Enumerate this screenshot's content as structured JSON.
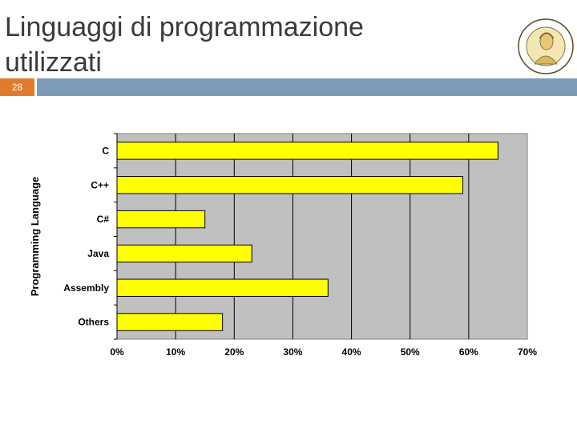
{
  "slide": {
    "title": "Linguaggi di programmazione utilizzati",
    "number": "28"
  },
  "logo": {
    "text": "UNIVERSITAS NEAPOLITANA"
  },
  "colors": {
    "bar_fill": "#ffff00",
    "bar_stroke": "#000000",
    "plot_bg": "#c0c0c0",
    "header_bar": "#7f9ab8",
    "slide_number_bg": "#e07b2e"
  },
  "chart_data": {
    "type": "bar",
    "orientation": "horizontal",
    "categories": [
      "C",
      "C++",
      "C#",
      "Java",
      "Assembly",
      "Others"
    ],
    "values": [
      65,
      59,
      15,
      23,
      36,
      18
    ],
    "ylabel": "Programming Language",
    "xlim": [
      0,
      70
    ],
    "xticks": [
      "0%",
      "10%",
      "20%",
      "30%",
      "40%",
      "50%",
      "60%",
      "70%"
    ],
    "grid": true,
    "legend": "none"
  }
}
